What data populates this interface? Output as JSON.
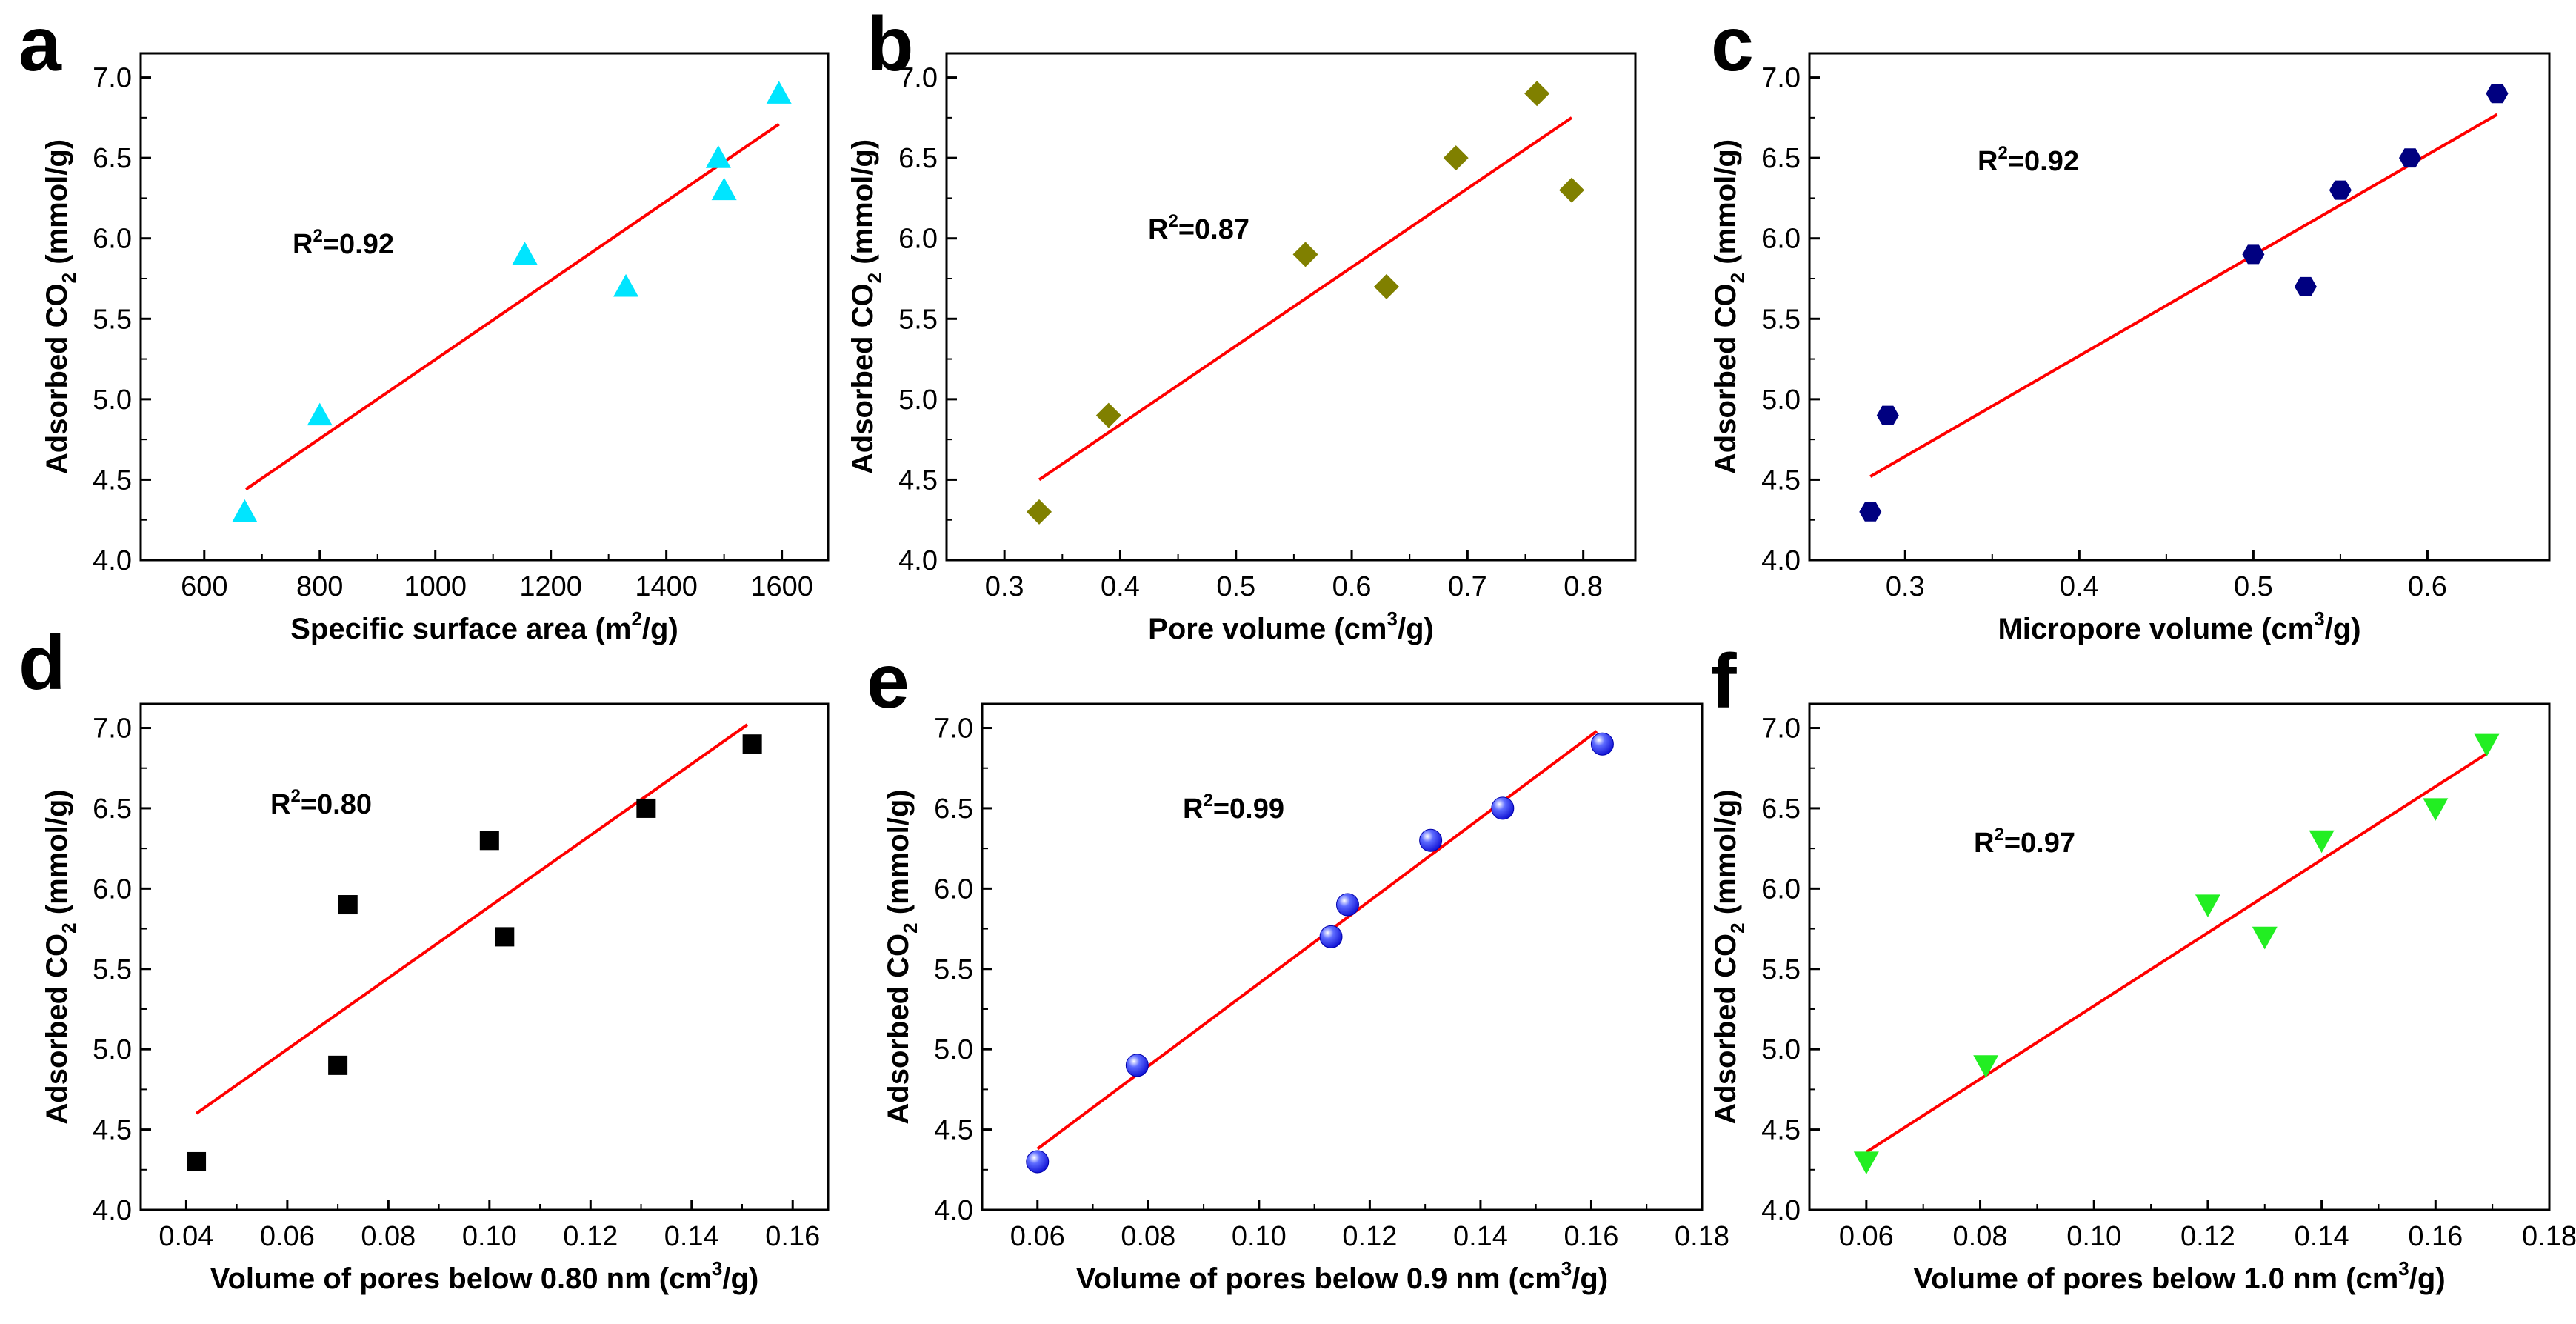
{
  "chart_data": [
    {
      "panel": "a",
      "type": "scatter",
      "xlabel": "Specific surface area (m²/g)",
      "xlabel_parts": [
        "Specific surface area (m",
        "2",
        "/g)"
      ],
      "ylabel_parts": [
        "Adsorbed CO",
        "2",
        " (mmol/g)"
      ],
      "xlim": [
        490,
        1680
      ],
      "ylim": [
        4.0,
        7.15
      ],
      "xticks": [
        600,
        800,
        1000,
        1200,
        1400,
        1600
      ],
      "xtick_labels": [
        "600",
        "800",
        "1000",
        "1200",
        "1400",
        "1600"
      ],
      "yticks": [
        4.0,
        4.5,
        5.0,
        5.5,
        6.0,
        6.5,
        7.0
      ],
      "ytick_labels": [
        "4.0",
        "4.5",
        "5.0",
        "5.5",
        "6.0",
        "6.5",
        "7.0"
      ],
      "marker": "triangle-up",
      "color": "#00e5ff",
      "points": [
        [
          670,
          4.3
        ],
        [
          800,
          4.9
        ],
        [
          1155,
          5.9
        ],
        [
          1330,
          5.7
        ],
        [
          1490,
          6.5
        ],
        [
          1500,
          6.3
        ],
        [
          1595,
          6.9
        ]
      ],
      "fit": {
        "x": [
          672,
          1595
        ],
        "y": [
          4.44,
          6.71
        ],
        "color": "#ff0000"
      },
      "r2_label": "R",
      "r2_sup": "2",
      "r2_value": "=0.92"
    },
    {
      "panel": "b",
      "type": "scatter",
      "xlabel": "Pore volume (cm³/g)",
      "xlabel_parts": [
        "Pore volume (cm",
        "3",
        "/g)"
      ],
      "ylabel_parts": [
        "Adsorbed CO",
        "2",
        " (mmol/g)"
      ],
      "xlim": [
        0.25,
        0.845
      ],
      "ylim": [
        4.0,
        7.15
      ],
      "xticks": [
        0.3,
        0.4,
        0.5,
        0.6,
        0.7,
        0.8
      ],
      "xtick_labels": [
        "0.3",
        "0.4",
        "0.5",
        "0.6",
        "0.7",
        "0.8"
      ],
      "yticks": [
        4.0,
        4.5,
        5.0,
        5.5,
        6.0,
        6.5,
        7.0
      ],
      "ytick_labels": [
        "4.0",
        "4.5",
        "5.0",
        "5.5",
        "6.0",
        "6.5",
        "7.0"
      ],
      "marker": "diamond",
      "color": "#808000",
      "points": [
        [
          0.33,
          4.3
        ],
        [
          0.39,
          4.9
        ],
        [
          0.56,
          5.9
        ],
        [
          0.63,
          5.7
        ],
        [
          0.69,
          6.5
        ],
        [
          0.76,
          6.9
        ],
        [
          0.79,
          6.3
        ]
      ],
      "fit": {
        "x": [
          0.33,
          0.79
        ],
        "y": [
          4.5,
          6.75
        ],
        "color": "#ff0000"
      },
      "r2_label": "R",
      "r2_sup": "2",
      "r2_value": "=0.87"
    },
    {
      "panel": "c",
      "type": "scatter",
      "xlabel": "Micropore volume (cm³/g)",
      "xlabel_parts": [
        "Micropore volume (cm",
        "3",
        "/g)"
      ],
      "ylabel_parts": [
        "Adsorbed CO",
        "2",
        " (mmol/g)"
      ],
      "xlim": [
        0.245,
        0.67
      ],
      "ylim": [
        4.0,
        7.15
      ],
      "xticks": [
        0.3,
        0.4,
        0.5,
        0.6
      ],
      "xtick_labels": [
        "0.3",
        "0.4",
        "0.5",
        "0.6"
      ],
      "yticks": [
        4.0,
        4.5,
        5.0,
        5.5,
        6.0,
        6.5,
        7.0
      ],
      "ytick_labels": [
        "4.0",
        "4.5",
        "5.0",
        "5.5",
        "6.0",
        "6.5",
        "7.0"
      ],
      "marker": "hexagon",
      "color": "#000080",
      "points": [
        [
          0.28,
          4.3
        ],
        [
          0.29,
          4.9
        ],
        [
          0.5,
          5.9
        ],
        [
          0.53,
          5.7
        ],
        [
          0.55,
          6.3
        ],
        [
          0.59,
          6.5
        ],
        [
          0.64,
          6.9
        ]
      ],
      "fit": {
        "x": [
          0.28,
          0.64
        ],
        "y": [
          4.52,
          6.77
        ],
        "color": "#ff0000"
      },
      "r2_label": "R",
      "r2_sup": "2",
      "r2_value": "=0.92"
    },
    {
      "panel": "d",
      "type": "scatter",
      "xlabel": "Volume of pores below 0.80 nm (cm³/g)",
      "xlabel_parts": [
        "Volume of pores below 0.80 nm (cm",
        "3",
        "/g)"
      ],
      "ylabel_parts": [
        "Adsorbed CO",
        "2",
        " (mmol/g)"
      ],
      "xlim": [
        0.031,
        0.167
      ],
      "ylim": [
        4.0,
        7.15
      ],
      "xticks": [
        0.04,
        0.06,
        0.08,
        0.1,
        0.12,
        0.14,
        0.16
      ],
      "xtick_labels": [
        "0.04",
        "0.06",
        "0.08",
        "0.10",
        "0.12",
        "0.14",
        "0.16"
      ],
      "yticks": [
        4.0,
        4.5,
        5.0,
        5.5,
        6.0,
        6.5,
        7.0
      ],
      "ytick_labels": [
        "4.0",
        "4.5",
        "5.0",
        "5.5",
        "6.0",
        "6.5",
        "7.0"
      ],
      "marker": "square",
      "color": "#000000",
      "points": [
        [
          0.042,
          4.3
        ],
        [
          0.07,
          4.9
        ],
        [
          0.072,
          5.9
        ],
        [
          0.1,
          6.3
        ],
        [
          0.103,
          5.7
        ],
        [
          0.131,
          6.5
        ],
        [
          0.152,
          6.9
        ]
      ],
      "fit": {
        "x": [
          0.042,
          0.151
        ],
        "y": [
          4.6,
          7.02
        ],
        "color": "#ff0000"
      },
      "r2_label": "R",
      "r2_sup": "2",
      "r2_value": "=0.80"
    },
    {
      "panel": "e",
      "type": "scatter",
      "xlabel": "Volume of pores below 0.9 nm (cm³/g)",
      "xlabel_parts": [
        "Volume of pores below 0.9 nm (cm",
        "3",
        "/g)"
      ],
      "ylabel_parts": [
        "Adsorbed CO",
        "2",
        " (mmol/g)"
      ],
      "xlim": [
        0.05,
        0.18
      ],
      "ylim": [
        4.0,
        7.15
      ],
      "xticks": [
        0.06,
        0.08,
        0.1,
        0.12,
        0.14,
        0.16,
        0.18
      ],
      "xtick_labels": [
        "0.06",
        "0.08",
        "0.10",
        "0.12",
        "0.14",
        "0.16",
        "0.18"
      ],
      "yticks": [
        4.0,
        4.5,
        5.0,
        5.5,
        6.0,
        6.5,
        7.0
      ],
      "ytick_labels": [
        "4.0",
        "4.5",
        "5.0",
        "5.5",
        "6.0",
        "6.5",
        "7.0"
      ],
      "marker": "sphere",
      "color": "#1a1aff",
      "points": [
        [
          0.06,
          4.3
        ],
        [
          0.078,
          4.9
        ],
        [
          0.113,
          5.7
        ],
        [
          0.116,
          5.9
        ],
        [
          0.131,
          6.3
        ],
        [
          0.144,
          6.5
        ],
        [
          0.162,
          6.9
        ]
      ],
      "fit": {
        "x": [
          0.06,
          0.161
        ],
        "y": [
          4.38,
          6.98
        ],
        "color": "#ff0000"
      },
      "r2_label": "R",
      "r2_sup": "2",
      "r2_value": "=0.99"
    },
    {
      "panel": "f",
      "type": "scatter",
      "xlabel": "Volume of pores below 1.0 nm (cm³/g)",
      "xlabel_parts": [
        "Volume of pores below 1.0 nm (cm",
        "3",
        "/g)"
      ],
      "ylabel_parts": [
        "Adsorbed CO",
        "2",
        " (mmol/g)"
      ],
      "xlim": [
        0.05,
        0.18
      ],
      "ylim": [
        4.0,
        7.15
      ],
      "xticks": [
        0.06,
        0.08,
        0.1,
        0.12,
        0.14,
        0.16,
        0.18
      ],
      "xtick_labels": [
        "0.06",
        "0.08",
        "0.10",
        "0.12",
        "0.14",
        "0.16",
        "0.18"
      ],
      "yticks": [
        4.0,
        4.5,
        5.0,
        5.5,
        6.0,
        6.5,
        7.0
      ],
      "ytick_labels": [
        "4.0",
        "4.5",
        "5.0",
        "5.5",
        "6.0",
        "6.5",
        "7.0"
      ],
      "marker": "triangle-down",
      "color": "#22ee22",
      "points": [
        [
          0.06,
          4.3
        ],
        [
          0.081,
          4.9
        ],
        [
          0.12,
          5.9
        ],
        [
          0.13,
          5.7
        ],
        [
          0.14,
          6.3
        ],
        [
          0.16,
          6.5
        ],
        [
          0.169,
          6.9
        ]
      ],
      "fit": {
        "x": [
          0.06,
          0.169
        ],
        "y": [
          4.36,
          6.84
        ],
        "color": "#ff0000"
      },
      "r2_label": "R",
      "r2_sup": "2",
      "r2_value": "=0.97"
    }
  ]
}
